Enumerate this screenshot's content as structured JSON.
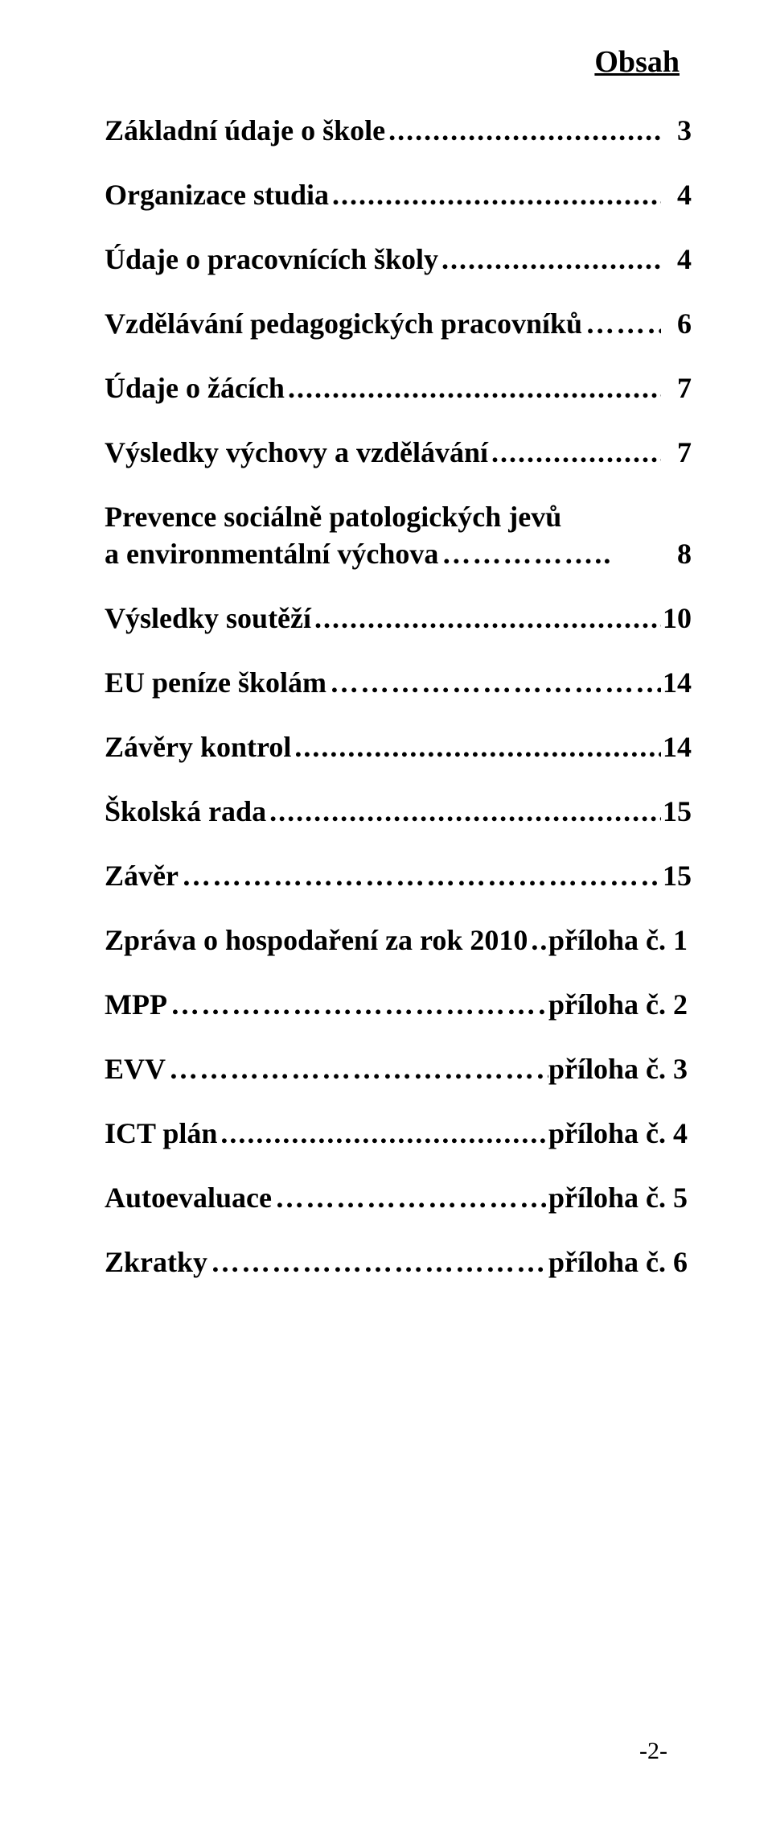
{
  "title": "Obsah",
  "leader_dots": "..........................................................................................................................................",
  "leader_dots_short": ".........................................................................................",
  "entries": [
    {
      "label": "Základní údaje o škole",
      "page": "3",
      "leader": "dots"
    },
    {
      "label": "Organizace studia",
      "page": "4",
      "leader": "dots"
    },
    {
      "label": "Údaje o pracovnících školy",
      "page": "4",
      "leader": "dots"
    },
    {
      "label": "Vzdělávání pedagogických pracovníků",
      "page": "6",
      "leader": "ellipsis"
    },
    {
      "label": "Údaje o žácích",
      "page": "7",
      "leader": "dots"
    },
    {
      "label": "Výsledky výchovy a vzdělávání",
      "page": "7",
      "leader": "dots"
    },
    {
      "label": "Prevence sociálně patologických jevů",
      "label2": "a environmentální výchova",
      "page": "8",
      "leader": "ellipsis_short"
    },
    {
      "label": "Výsledky soutěží",
      "page": "10",
      "leader": "dots"
    },
    {
      "label": "EU peníze školám",
      "page": "14",
      "leader": "ellipsis"
    },
    {
      "label": "Závěry kontrol",
      "page": "14",
      "leader": "dots"
    },
    {
      "label": "Školská rada",
      "page": "15",
      "leader": "dots",
      "no_space": true
    },
    {
      "label": "Závěr",
      "page": "15",
      "leader": "mixed"
    },
    {
      "label": "Zpráva o hospodaření za rok 2010",
      "page": "příloha č. 1",
      "leader": "dots_short",
      "wide": true
    },
    {
      "label": "MPP",
      "page": "příloha č. 2",
      "leader": "ellipsis",
      "wide": true
    },
    {
      "label": "EVV",
      "page": "příloha č. 3",
      "leader": "ellipsis",
      "wide": true
    },
    {
      "label": "ICT plán",
      "page": "příloha č. 4",
      "leader": "dots",
      "wide": true
    },
    {
      "label": "Autoevaluace",
      "page": "příloha č. 5",
      "leader": "ellipsis_dot",
      "wide": true
    },
    {
      "label": "Zkratky",
      "page": "příloha č. 6",
      "leader": "ellipsis_dd",
      "wide": true
    }
  ],
  "footer": "-2-",
  "leaders": {
    "dots": ".............................................................................................................................",
    "dots_short": "......",
    "ellipsis": "…………………………………………………………",
    "ellipsis_short": "……………..",
    "ellipsis_dot": "…………………………………………….",
    "ellipsis_dd": "……………………………………………………..",
    "mixed": "………………………………………………......"
  }
}
